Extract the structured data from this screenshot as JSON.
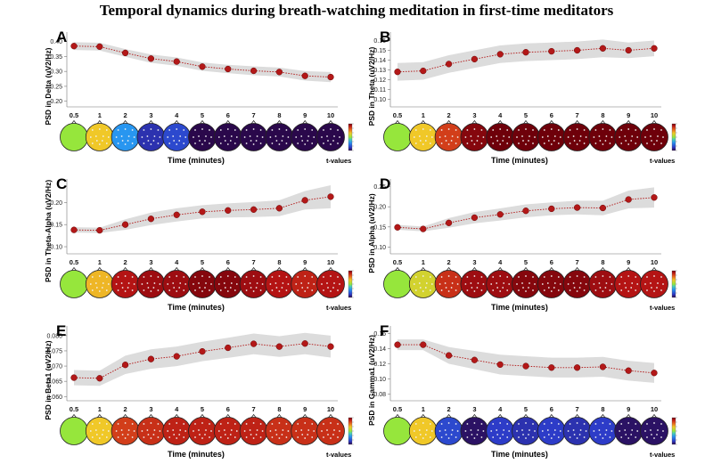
{
  "figure_title": "Temporal dynamics during breath-watching meditation in first-time meditators",
  "colorbar_ticks": [
    "",
    "",
    "",
    "",
    "",
    "",
    ""
  ],
  "chart_data": [
    {
      "id": "A",
      "letter": "A",
      "type": "line",
      "ylabel": "PSD in Delta (uV2/Hz)",
      "xlabel": "Time  (minutes)",
      "cbar_label": "t-values",
      "x": [
        "0.5",
        "1",
        "2",
        "3",
        "4",
        "5",
        "6",
        "7",
        "8",
        "9",
        "10"
      ],
      "values": [
        0.385,
        0.383,
        0.362,
        0.343,
        0.333,
        0.316,
        0.308,
        0.302,
        0.298,
        0.285,
        0.281
      ],
      "band": [
        0.013,
        0.013,
        0.013,
        0.014,
        0.014,
        0.014,
        0.014,
        0.015,
        0.015,
        0.016,
        0.017
      ],
      "ylim": [
        0.19,
        0.42
      ],
      "yticks": [
        0.2,
        0.25,
        0.3,
        0.35,
        0.4
      ],
      "ytick_labels": [
        "0.20",
        "0.25",
        "0.30",
        "0.35",
        "0.40"
      ],
      "topo_t": [
        0,
        0.3,
        -0.4,
        -0.8,
        -0.7,
        -1,
        -1,
        -1,
        -1,
        -1,
        -1
      ]
    },
    {
      "id": "B",
      "letter": "B",
      "type": "line",
      "ylabel": "PSD in Theta (uV2/Hz)",
      "xlabel": "Time  (minutes)",
      "cbar_label": "t-values",
      "x": [
        "0.5",
        "1",
        "2",
        "3",
        "4",
        "5",
        "6",
        "7",
        "8",
        "9",
        "10"
      ],
      "values": [
        0.128,
        0.129,
        0.136,
        0.141,
        0.146,
        0.148,
        0.149,
        0.15,
        0.152,
        0.15,
        0.152
      ],
      "band": [
        0.009,
        0.009,
        0.009,
        0.009,
        0.009,
        0.009,
        0.009,
        0.009,
        0.009,
        0.008,
        0.008
      ],
      "ylim": [
        0.095,
        0.165
      ],
      "yticks": [
        0.1,
        0.11,
        0.12,
        0.13,
        0.14,
        0.15,
        0.16
      ],
      "ytick_labels": [
        "0.10",
        "0.11",
        "0.12",
        "0.13",
        "0.14",
        "0.15",
        "0.16"
      ],
      "topo_t": [
        0,
        0.3,
        0.7,
        0.95,
        1,
        1,
        1,
        1,
        1,
        1,
        1
      ]
    },
    {
      "id": "C",
      "letter": "C",
      "type": "line",
      "ylabel": "PSD in Theta-Alpha (uV2/Hz)",
      "xlabel": "Time  (minutes)",
      "cbar_label": "t-values",
      "x": [
        "0.5",
        "1",
        "2",
        "3",
        "4",
        "5",
        "6",
        "7",
        "8",
        "9",
        "10"
      ],
      "values": [
        0.138,
        0.137,
        0.15,
        0.163,
        0.172,
        0.179,
        0.182,
        0.184,
        0.187,
        0.205,
        0.213
      ],
      "band": [
        0.006,
        0.006,
        0.012,
        0.014,
        0.015,
        0.015,
        0.016,
        0.017,
        0.018,
        0.021,
        0.026
      ],
      "ylim": [
        0.09,
        0.245
      ],
      "yticks": [
        0.1,
        0.15,
        0.2
      ],
      "ytick_labels": [
        "0.10",
        "0.15",
        "0.20"
      ],
      "topo_t": [
        0,
        0.35,
        0.85,
        0.9,
        0.9,
        0.95,
        0.95,
        0.9,
        0.85,
        0.8,
        0.85
      ]
    },
    {
      "id": "D",
      "letter": "D",
      "type": "line",
      "ylabel": "PSD in Alpha (uV2/Hz)",
      "xlabel": "Time  (minutes)",
      "cbar_label": "t-values",
      "x": [
        "0.5",
        "1",
        "2",
        "3",
        "4",
        "5",
        "6",
        "7",
        "8",
        "9",
        "10"
      ],
      "values": [
        0.149,
        0.145,
        0.16,
        0.173,
        0.181,
        0.19,
        0.195,
        0.198,
        0.197,
        0.218,
        0.223
      ],
      "band": [
        0.006,
        0.006,
        0.012,
        0.014,
        0.015,
        0.016,
        0.016,
        0.017,
        0.018,
        0.022,
        0.025
      ],
      "ylim": [
        0.09,
        0.26
      ],
      "yticks": [
        0.1,
        0.15,
        0.2,
        0.25
      ],
      "ytick_labels": [
        "0.10",
        "0.15",
        "0.20",
        "0.25"
      ],
      "topo_t": [
        0,
        0.2,
        0.75,
        0.9,
        0.9,
        0.95,
        0.95,
        0.95,
        0.9,
        0.85,
        0.85
      ]
    },
    {
      "id": "E",
      "letter": "E",
      "type": "line",
      "ylabel": "PSD in Beta1 (uV2/Hz)",
      "xlabel": "Time  (minutes)",
      "cbar_label": "t-values",
      "x": [
        "0.5",
        "1",
        "2",
        "3",
        "4",
        "5",
        "6",
        "7",
        "8",
        "9",
        "10"
      ],
      "values": [
        0.0662,
        0.066,
        0.0704,
        0.0723,
        0.0732,
        0.0748,
        0.076,
        0.0773,
        0.0764,
        0.0774,
        0.0764
      ],
      "band": [
        0.0025,
        0.0025,
        0.003,
        0.0032,
        0.0032,
        0.0032,
        0.0033,
        0.0034,
        0.0034,
        0.0035,
        0.0036
      ],
      "ylim": [
        0.0595,
        0.082
      ],
      "yticks": [
        0.06,
        0.065,
        0.07,
        0.075,
        0.08
      ],
      "ytick_labels": [
        "0.060",
        "0.065",
        "0.070",
        "0.075",
        "0.080"
      ],
      "topo_t": [
        0,
        0.3,
        0.7,
        0.75,
        0.8,
        0.8,
        0.8,
        0.8,
        0.75,
        0.75,
        0.75
      ]
    },
    {
      "id": "F",
      "letter": "F",
      "type": "line",
      "ylabel": "PSD in Gamma1 (uV2/Hz)",
      "xlabel": "Time  (minutes)",
      "cbar_label": "t-values",
      "x": [
        "0.5",
        "1",
        "2",
        "3",
        "4",
        "5",
        "6",
        "7",
        "8",
        "9",
        "10"
      ],
      "values": [
        0.145,
        0.145,
        0.131,
        0.125,
        0.119,
        0.117,
        0.115,
        0.115,
        0.116,
        0.111,
        0.108
      ],
      "band": [
        0.007,
        0.007,
        0.011,
        0.012,
        0.013,
        0.013,
        0.013,
        0.013,
        0.013,
        0.013,
        0.013
      ],
      "ylim": [
        0.075,
        0.165
      ],
      "yticks": [
        0.08,
        0.1,
        0.12,
        0.14,
        0.16
      ],
      "ytick_labels": [
        "0.08",
        "0.10",
        "0.12",
        "0.14",
        "0.16"
      ],
      "topo_t": [
        0,
        0.3,
        -0.7,
        -0.95,
        -0.75,
        -0.8,
        -0.75,
        -0.8,
        -0.75,
        -0.95,
        -0.95
      ]
    }
  ]
}
